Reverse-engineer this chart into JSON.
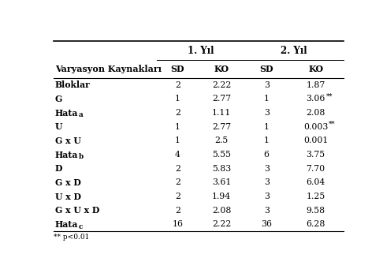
{
  "col_header_row1_labels": [
    "1. Yıl",
    "2. Yıl"
  ],
  "col_header_row2": [
    "Varyasyon Kaynakları",
    "SD",
    "KO",
    "SD",
    "KO"
  ],
  "rows": [
    [
      "Bloklar",
      "2",
      "2.22",
      "3",
      "1.87"
    ],
    [
      "G",
      "1",
      "2.77",
      "1",
      "3.06**"
    ],
    [
      "Hata_a",
      "2",
      "1.11",
      "3",
      "2.08"
    ],
    [
      "U",
      "1",
      "2.77",
      "1",
      "0.003**"
    ],
    [
      "G x U",
      "1",
      "2.5",
      "1",
      "0.001"
    ],
    [
      "Hata_b",
      "4",
      "5.55",
      "6",
      "3.75"
    ],
    [
      "D",
      "2",
      "5.83",
      "3",
      "7.70"
    ],
    [
      "G x D",
      "2",
      "3.61",
      "3",
      "6.04"
    ],
    [
      "U x D",
      "2",
      "1.94",
      "3",
      "1.25"
    ],
    [
      "G x U x D",
      "2",
      "2.08",
      "3",
      "9.58"
    ],
    [
      "Hata_c",
      "16",
      "2.22",
      "36",
      "6.28"
    ]
  ],
  "footnote": "** p<0.01",
  "fig_width": 4.86,
  "fig_height": 3.46,
  "dpi": 100
}
